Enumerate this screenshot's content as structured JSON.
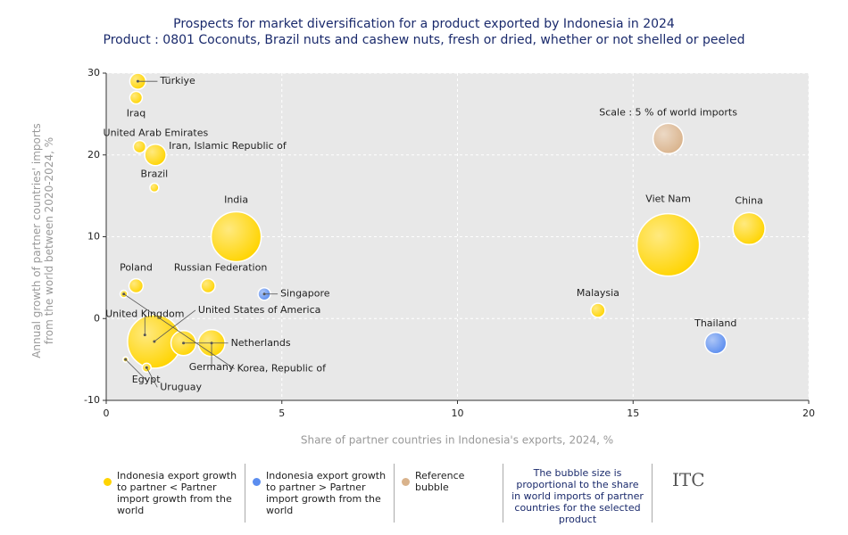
{
  "chart_data": {
    "type": "bubble",
    "title": "Prospects for market diversification for a product exported by Indonesia in 2024",
    "subtitle": "Product : 0801 Coconuts, Brazil nuts and cashew nuts, fresh or dried, whether or not shelled or peeled",
    "x_label": "Share of partner countries in Indonesia's exports, 2024, %",
    "y_label": "Annual growth of partner countries' imports from the world between 2020-2024, %",
    "xlim": [
      0,
      20
    ],
    "xticks": [
      0,
      5,
      10,
      15,
      20
    ],
    "ylim": [
      -10,
      30
    ],
    "yticks": [
      -10,
      0,
      10,
      20,
      30
    ],
    "grid": true,
    "series": [
      {
        "name": "Indonesia export growth to partner < Partner import growth from the world",
        "color": "#ffd400",
        "labels": [
          "Türkiye",
          "Iraq",
          "United Arab Emirates",
          "Iran, Islamic Republic of",
          "Brazil",
          "India",
          "Poland",
          "Russian Federation",
          "Korea, Republic of",
          "United Kingdom",
          "United States of America",
          "Netherlands",
          "Germany",
          "Egypt",
          "Uruguay",
          "Viet Nam",
          "China",
          "Malaysia"
        ],
        "x": [
          0.9,
          0.85,
          0.95,
          1.4,
          1.37,
          3.7,
          0.85,
          2.9,
          0.5,
          1.1,
          1.37,
          2.2,
          3.0,
          0.55,
          1.15,
          16.0,
          18.3,
          14.0
        ],
        "values": [
          29,
          27,
          21,
          20,
          16,
          10,
          4,
          4,
          3,
          -2,
          -2.8,
          -3,
          -3,
          -5,
          -6,
          9,
          11,
          1
        ],
        "sizes": [
          1.4,
          0.85,
          0.85,
          2.5,
          0.43,
          13.6,
          1.1,
          1.1,
          0.3,
          0.6,
          15.6,
          3.4,
          3.9,
          0.15,
          0.43,
          21.2,
          5.6,
          1.1
        ]
      },
      {
        "name": "Indonesia export growth to partner > Partner import growth from the world",
        "color": "#5b8def",
        "labels": [
          "Singapore",
          "Thailand"
        ],
        "x": [
          4.5,
          17.35
        ],
        "values": [
          3,
          -3
        ],
        "sizes": [
          0.85,
          2.5
        ]
      },
      {
        "name": "Reference bubble",
        "color": "#d9b38c",
        "labels": [
          "Scale : 5 % of world imports"
        ],
        "x": [
          16
        ],
        "values": [
          22
        ],
        "sizes": [
          5
        ]
      }
    ],
    "size_note": "The bubble size is proportional to the share in world imports of partner countries for the selected product",
    "logo": "ITC"
  }
}
